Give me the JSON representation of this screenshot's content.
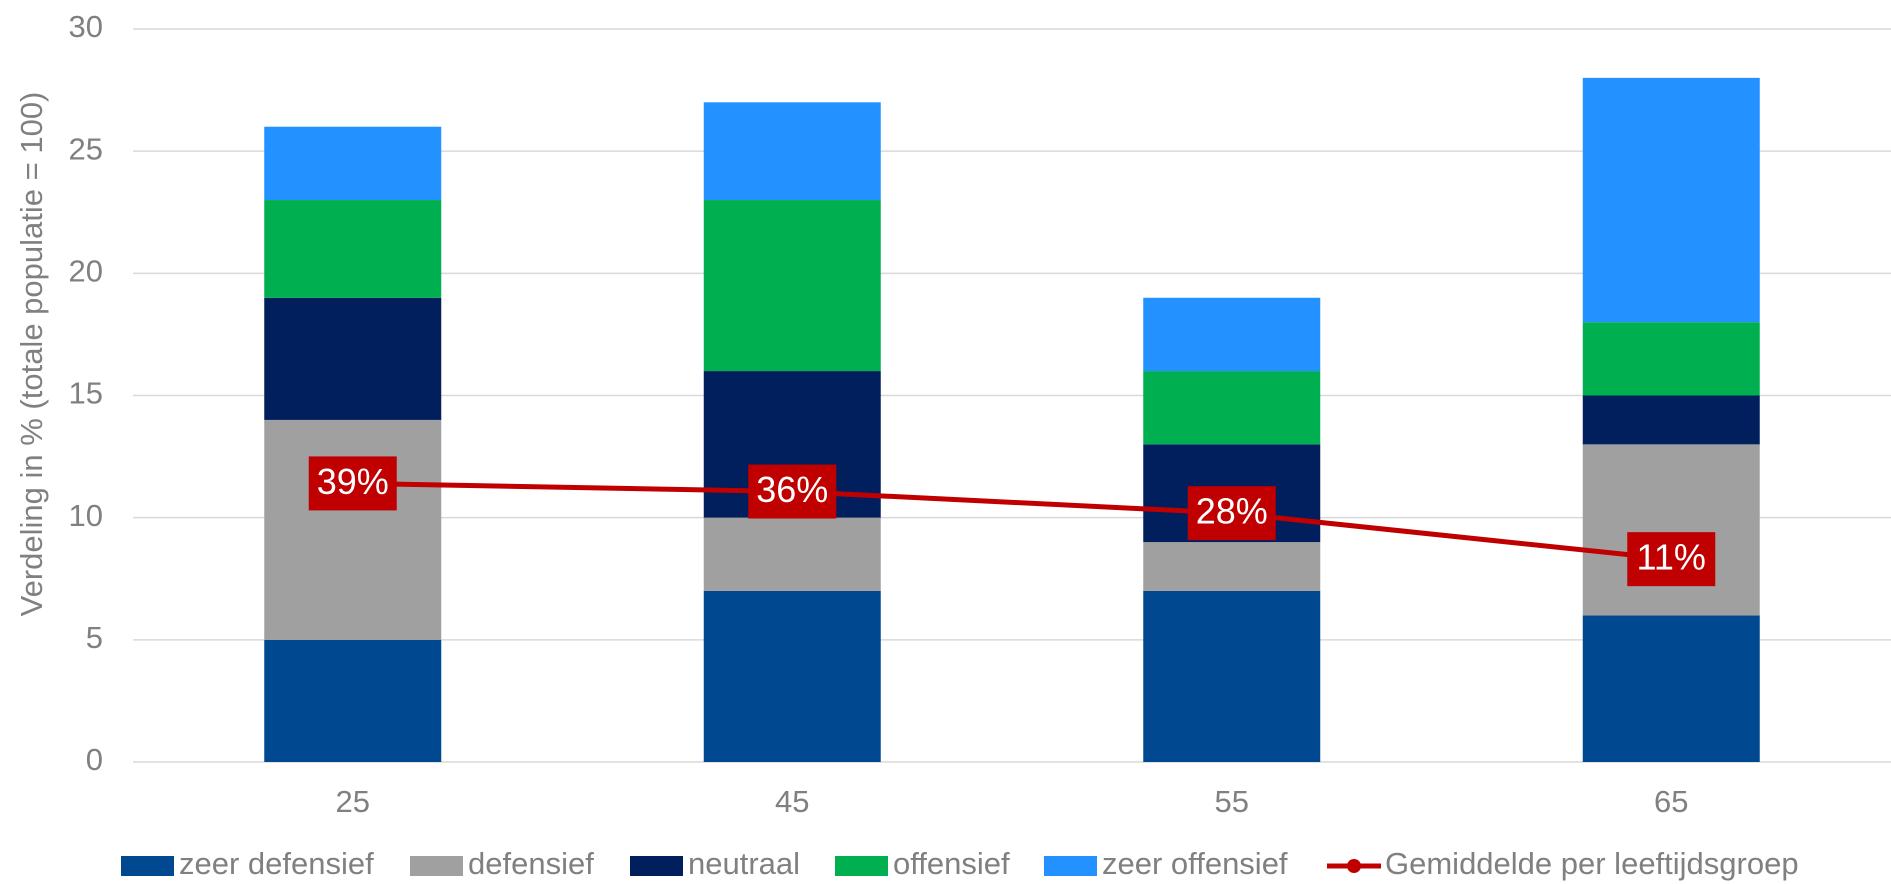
{
  "chart_data": {
    "type": "stacked-bar-line",
    "y_label": "Verdeling in % (totale populatie = 100)",
    "categories": [
      "25",
      "45",
      "55",
      "65"
    ],
    "series": [
      {
        "name": "zeer defensief",
        "color": "#004990",
        "values": [
          5,
          7,
          7,
          6
        ]
      },
      {
        "name": "defensief",
        "color": "#a0a0a0",
        "values": [
          9,
          3,
          2,
          7
        ]
      },
      {
        "name": "neutraal",
        "color": "#001f5c",
        "values": [
          5,
          6,
          4,
          2
        ]
      },
      {
        "name": "offensief",
        "color": "#00b050",
        "values": [
          4,
          7,
          3,
          3
        ]
      },
      {
        "name": "zeer offensief",
        "color": "#2391ff",
        "values": [
          3,
          4,
          3,
          10
        ]
      },
      {
        "name": "Gemiddelde per leeftijdsgroep",
        "color": "#c00000",
        "type": "line",
        "axis": "y2",
        "values": [
          39,
          36,
          28,
          11
        ],
        "value_labels": [
          "39%",
          "36%",
          "28%",
          "11%"
        ]
      }
    ],
    "ylim": [
      0,
      30
    ],
    "yticks": [
      0,
      5,
      10,
      15,
      20,
      25,
      30
    ],
    "y2lim": [
      -64,
      207
    ],
    "grid": true,
    "legend": "bottom"
  }
}
